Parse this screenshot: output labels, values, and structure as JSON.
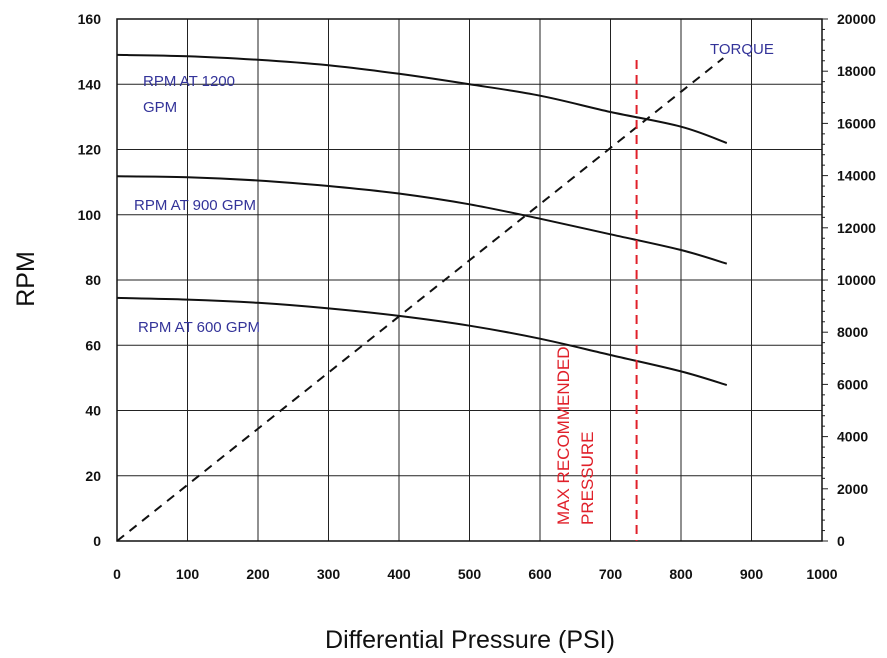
{
  "chart_data": {
    "type": "line",
    "xlabel": "Differential Pressure (PSI)",
    "ylabel": "RPM",
    "xlim": [
      0,
      1000
    ],
    "ylim": [
      0,
      160
    ],
    "y2lim": [
      0,
      20000
    ],
    "grid": true,
    "x_ticks": [
      "0",
      "100",
      "200",
      "300",
      "400",
      "500",
      "600",
      "700",
      "800",
      "900",
      "1000"
    ],
    "y_ticks": [
      "0",
      "20",
      "40",
      "60",
      "80",
      "100",
      "120",
      "140",
      "160"
    ],
    "y2_ticks": [
      "0",
      "2000",
      "4000",
      "6000",
      "8000",
      "10000",
      "12000",
      "14000",
      "16000",
      "18000",
      "20000"
    ],
    "series": [
      {
        "name": "RPM AT 1200 GPM",
        "label_lines": [
          "RPM AT 1200",
          "GPM"
        ],
        "axis": "left",
        "style": "solid",
        "color": "#111111",
        "points": [
          [
            0,
            149
          ],
          [
            100,
            148.6
          ],
          [
            200,
            147.5
          ],
          [
            300,
            145.8
          ],
          [
            400,
            143.2
          ],
          [
            500,
            140.0
          ],
          [
            600,
            136.5
          ],
          [
            700,
            131.5
          ],
          [
            800,
            127.0
          ],
          [
            865,
            122.0
          ]
        ]
      },
      {
        "name": "RPM AT 900 GPM",
        "label_lines": [
          "RPM AT 900 GPM"
        ],
        "axis": "left",
        "style": "solid",
        "color": "#111111",
        "points": [
          [
            0,
            111.8
          ],
          [
            100,
            111.5
          ],
          [
            200,
            110.5
          ],
          [
            300,
            108.8
          ],
          [
            400,
            106.5
          ],
          [
            500,
            103.2
          ],
          [
            600,
            98.8
          ],
          [
            700,
            94.0
          ],
          [
            800,
            89.2
          ],
          [
            865,
            85.0
          ]
        ]
      },
      {
        "name": "RPM AT 600 GPM",
        "label_lines": [
          "RPM AT 600 GPM"
        ],
        "axis": "left",
        "style": "solid",
        "color": "#111111",
        "points": [
          [
            0,
            74.5
          ],
          [
            100,
            74.0
          ],
          [
            200,
            73.0
          ],
          [
            300,
            71.3
          ],
          [
            400,
            69.0
          ],
          [
            500,
            66.0
          ],
          [
            600,
            62.0
          ],
          [
            700,
            57.0
          ],
          [
            800,
            52.0
          ],
          [
            865,
            47.8
          ]
        ]
      },
      {
        "name": "TORQUE",
        "label_lines": [
          "TORQUE"
        ],
        "axis": "right",
        "style": "dashed",
        "color": "#111111",
        "points": [
          [
            0,
            0
          ],
          [
            860,
            18500
          ]
        ]
      }
    ],
    "annotations": [
      {
        "text_lines": [
          "MAX RECOMMENDED",
          "PRESSURE"
        ],
        "x": 737,
        "style": "vertical-dashed-line",
        "color": "#e0202a"
      }
    ]
  }
}
